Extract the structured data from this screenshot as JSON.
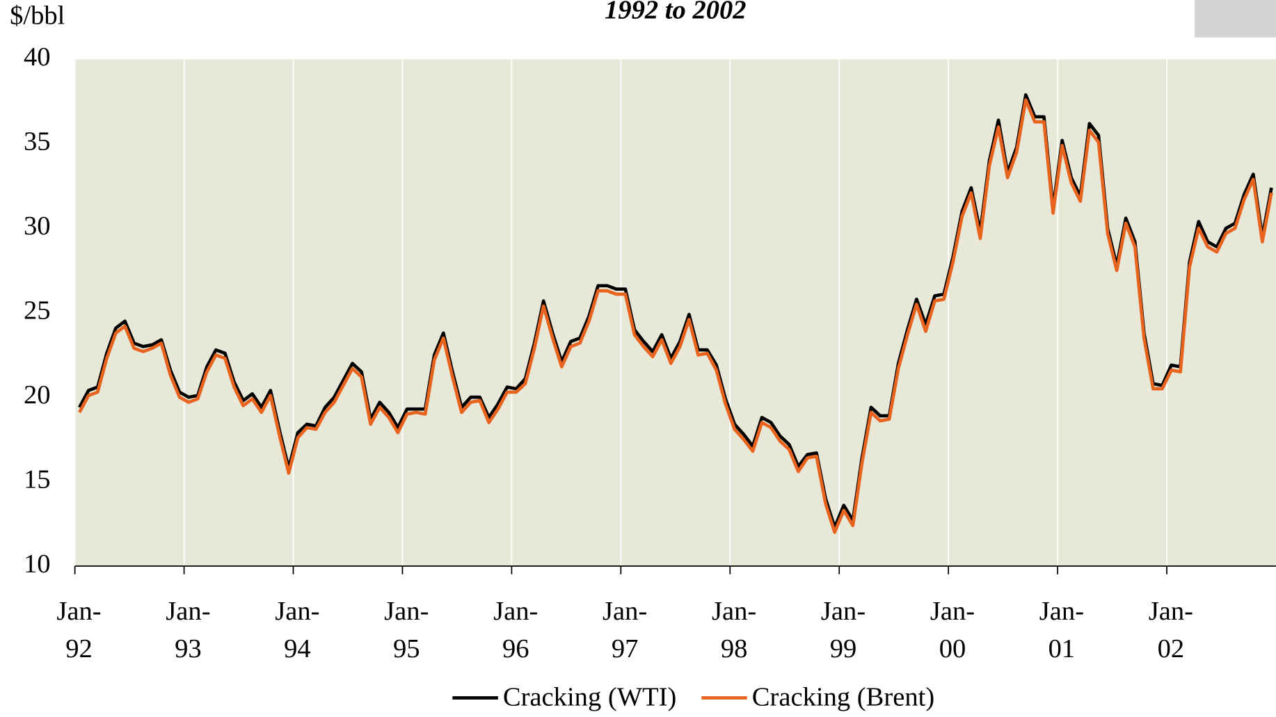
{
  "chart_data": {
    "type": "line",
    "title": "1992 to 2002",
    "y_label": "$/bbl",
    "categories": [
      "Jan-92",
      null,
      null,
      null,
      null,
      null,
      null,
      null,
      null,
      null,
      null,
      null,
      "Jan-93",
      null,
      null,
      null,
      null,
      null,
      null,
      null,
      null,
      null,
      null,
      null,
      "Jan-94",
      null,
      null,
      null,
      null,
      null,
      null,
      null,
      null,
      null,
      null,
      null,
      "Jan-95",
      null,
      null,
      null,
      null,
      null,
      null,
      null,
      null,
      null,
      null,
      null,
      "Jan-96",
      null,
      null,
      null,
      null,
      null,
      null,
      null,
      null,
      null,
      null,
      null,
      "Jan-97",
      null,
      null,
      null,
      null,
      null,
      null,
      null,
      null,
      null,
      null,
      null,
      "Jan-98",
      null,
      null,
      null,
      null,
      null,
      null,
      null,
      null,
      null,
      null,
      null,
      "Jan-99",
      null,
      null,
      null,
      null,
      null,
      null,
      null,
      null,
      null,
      null,
      null,
      "Jan-00",
      null,
      null,
      null,
      null,
      null,
      null,
      null,
      null,
      null,
      null,
      null,
      "Jan-01",
      null,
      null,
      null,
      null,
      null,
      null,
      null,
      null,
      null,
      null,
      null,
      "Jan-02",
      null,
      null,
      null,
      null,
      null,
      null,
      null,
      null,
      null,
      null,
      null
    ],
    "series": [
      {
        "name": "Cracking (WTI)",
        "color": "#000000",
        "values": [
          19.4,
          20.4,
          20.6,
          22.6,
          24.1,
          24.5,
          23.2,
          23.0,
          23.1,
          23.4,
          21.6,
          20.3,
          20.0,
          20.1,
          21.8,
          22.8,
          22.6,
          20.9,
          19.8,
          20.2,
          19.4,
          20.4,
          18.0,
          15.8,
          17.9,
          18.4,
          18.3,
          19.4,
          20.0,
          21.0,
          22.0,
          21.5,
          18.7,
          19.7,
          19.1,
          18.2,
          19.3,
          19.3,
          19.3,
          22.5,
          23.8,
          21.5,
          19.4,
          20.0,
          20.0,
          18.8,
          19.6,
          20.6,
          20.5,
          21.1,
          23.2,
          25.7,
          23.8,
          22.1,
          23.3,
          23.5,
          24.8,
          26.6,
          26.6,
          26.4,
          26.4,
          24.0,
          23.3,
          22.7,
          23.7,
          22.3,
          23.3,
          24.9,
          22.8,
          22.8,
          21.9,
          19.9,
          18.4,
          17.8,
          17.1,
          18.8,
          18.5,
          17.7,
          17.2,
          15.9,
          16.6,
          16.7,
          14.0,
          12.3,
          13.6,
          12.7,
          16.4,
          19.4,
          18.9,
          18.9,
          22.0,
          24.0,
          25.8,
          24.3,
          26.0,
          26.1,
          28.3,
          31.0,
          32.4,
          29.8,
          34.0,
          36.4,
          33.3,
          34.8,
          37.9,
          36.6,
          36.6,
          31.2,
          35.2,
          33.0,
          31.9,
          36.2,
          35.5,
          30.0,
          27.8,
          30.6,
          29.2,
          23.8,
          20.8,
          20.7,
          21.9,
          21.8,
          28.0,
          30.4,
          29.2,
          28.9,
          30.0,
          30.3,
          32.0,
          33.2,
          29.5,
          32.4
        ]
      },
      {
        "name": "Cracking (Brent)",
        "color": "#e8641e",
        "values": [
          19.1,
          20.1,
          20.3,
          22.3,
          23.8,
          24.2,
          22.9,
          22.7,
          22.9,
          23.2,
          21.3,
          20.0,
          19.7,
          19.9,
          21.5,
          22.5,
          22.3,
          20.6,
          19.5,
          19.9,
          19.1,
          20.1,
          17.7,
          15.5,
          17.6,
          18.2,
          18.1,
          19.1,
          19.7,
          20.7,
          21.7,
          21.2,
          18.4,
          19.4,
          18.8,
          17.9,
          19.0,
          19.1,
          19.0,
          22.2,
          23.5,
          21.2,
          19.1,
          19.7,
          19.8,
          18.5,
          19.3,
          20.3,
          20.3,
          20.8,
          22.9,
          25.4,
          23.5,
          21.8,
          23.0,
          23.2,
          24.5,
          26.3,
          26.3,
          26.1,
          26.1,
          23.7,
          23.0,
          22.4,
          23.4,
          22.0,
          23.0,
          24.6,
          22.5,
          22.6,
          21.6,
          19.6,
          18.1,
          17.5,
          16.8,
          18.5,
          18.2,
          17.4,
          16.9,
          15.6,
          16.4,
          16.5,
          13.7,
          12.0,
          13.3,
          12.4,
          16.1,
          19.1,
          18.6,
          18.7,
          21.7,
          23.7,
          25.5,
          23.9,
          25.7,
          25.8,
          28.0,
          30.7,
          32.1,
          29.4,
          33.7,
          36.0,
          33.0,
          34.5,
          37.6,
          36.3,
          36.3,
          30.9,
          34.9,
          32.7,
          31.6,
          35.8,
          35.1,
          29.7,
          27.5,
          30.3,
          28.9,
          23.5,
          20.5,
          20.5,
          21.6,
          21.5,
          27.7,
          30.0,
          28.9,
          28.6,
          29.7,
          30.0,
          31.7,
          32.9,
          29.2,
          32.1
        ]
      }
    ],
    "ylim": [
      10,
      40
    ],
    "yticks": [
      10,
      15,
      20,
      25,
      30,
      35,
      40
    ],
    "grid": "x",
    "legend": "bottom",
    "background": "#e8e8d8"
  }
}
